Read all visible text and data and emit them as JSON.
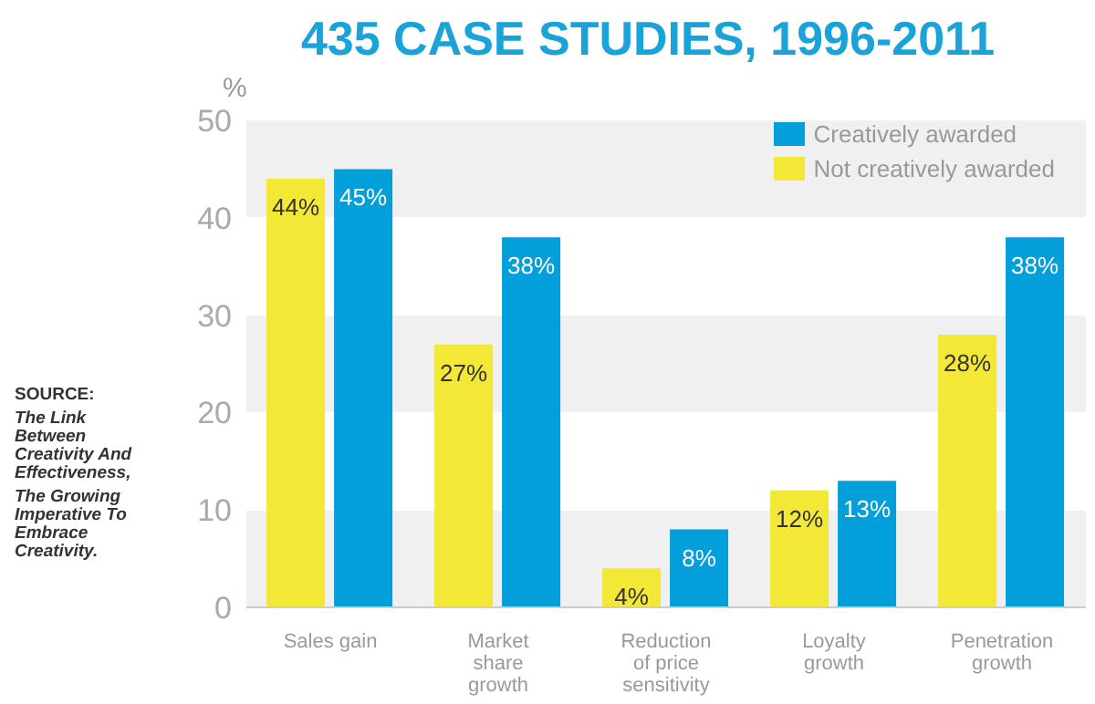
{
  "chart_data": {
    "type": "bar",
    "title": "435 CASE STUDIES, 1996-2011",
    "ylabel": "%",
    "categories": [
      "Sales gain",
      "Market share growth",
      "Reduction of price sensitivity",
      "Loyalty growth",
      "Penetration growth"
    ],
    "series": [
      {
        "name": "Not creatively awarded",
        "color": "#f2e835",
        "values": [
          44,
          27,
          4,
          12,
          28
        ],
        "value_labels": [
          "44%",
          "27%",
          "4%",
          "12%",
          "28%"
        ]
      },
      {
        "name": "Creatively awarded",
        "color": "#039fdb",
        "values": [
          45,
          38,
          8,
          13,
          38
        ],
        "value_labels": [
          "45%",
          "38%",
          "8%",
          "13%",
          "38%"
        ]
      }
    ],
    "ylim": [
      0,
      50
    ],
    "yticks": [
      0,
      10,
      20,
      30,
      40,
      50
    ],
    "grid": false,
    "legend": "top right",
    "annotations": [
      "SOURCE:",
      "The Link Between Creativity And Effectiveness,",
      "The Growing Imperative To Embrace Creativity."
    ]
  }
}
